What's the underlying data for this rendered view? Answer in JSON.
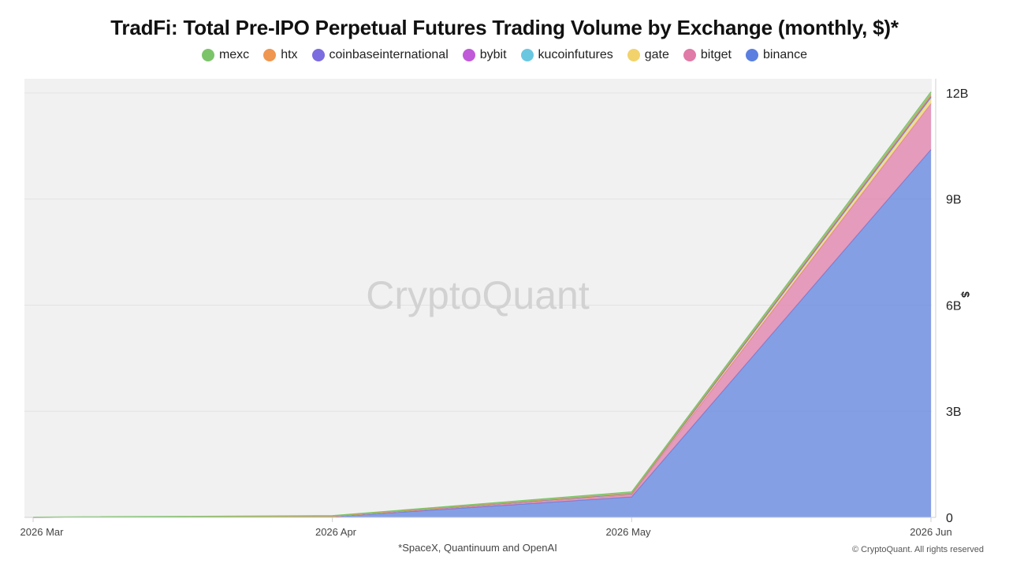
{
  "chart_data": {
    "type": "area",
    "stacked": true,
    "title": "TradFi: Total Pre-IPO Perpetual Futures Trading Volume by Exchange (monthly, $)*",
    "x": [
      "2026 Mar",
      "2026 Apr",
      "2026 May",
      "2026 Jun"
    ],
    "ylabel": "$",
    "ylim": [
      0,
      12400000000
    ],
    "yticks": [
      0,
      3000000000,
      6000000000,
      9000000000,
      12000000000
    ],
    "ytick_labels": [
      "0",
      "3B",
      "6B",
      "9B",
      "12B"
    ],
    "y_axis_position": "right",
    "grid": true,
    "legend_position": "top",
    "series": [
      {
        "name": "binance",
        "color": "#5b7fe0",
        "values": [
          0,
          20000000,
          580000000,
          10400000000
        ]
      },
      {
        "name": "bitget",
        "color": "#e07aa6",
        "values": [
          0,
          5000000,
          60000000,
          1300000000
        ]
      },
      {
        "name": "gate",
        "color": "#f2d36b",
        "values": [
          0,
          2000000,
          20000000,
          150000000
        ]
      },
      {
        "name": "kucoinfutures",
        "color": "#6ac7e0",
        "values": [
          0,
          1000000,
          5000000,
          20000000
        ]
      },
      {
        "name": "bybit",
        "color": "#c05ad8",
        "values": [
          0,
          1000000,
          5000000,
          20000000
        ]
      },
      {
        "name": "coinbaseinternational",
        "color": "#7b6ce0",
        "values": [
          0,
          0,
          2000000,
          10000000
        ]
      },
      {
        "name": "htx",
        "color": "#ef9650",
        "values": [
          0,
          1000000,
          10000000,
          50000000
        ]
      },
      {
        "name": "mexc",
        "color": "#7cc46a",
        "values": [
          10000000,
          20000000,
          40000000,
          80000000
        ]
      }
    ],
    "legend_order": [
      "mexc",
      "htx",
      "coinbaseinternational",
      "bybit",
      "kucoinfutures",
      "gate",
      "bitget",
      "binance"
    ],
    "watermark": "CryptoQuant",
    "footnote": "*SpaceX, Quantinuum and OpenAI",
    "copyright": "© CryptoQuant. All rights reserved"
  }
}
